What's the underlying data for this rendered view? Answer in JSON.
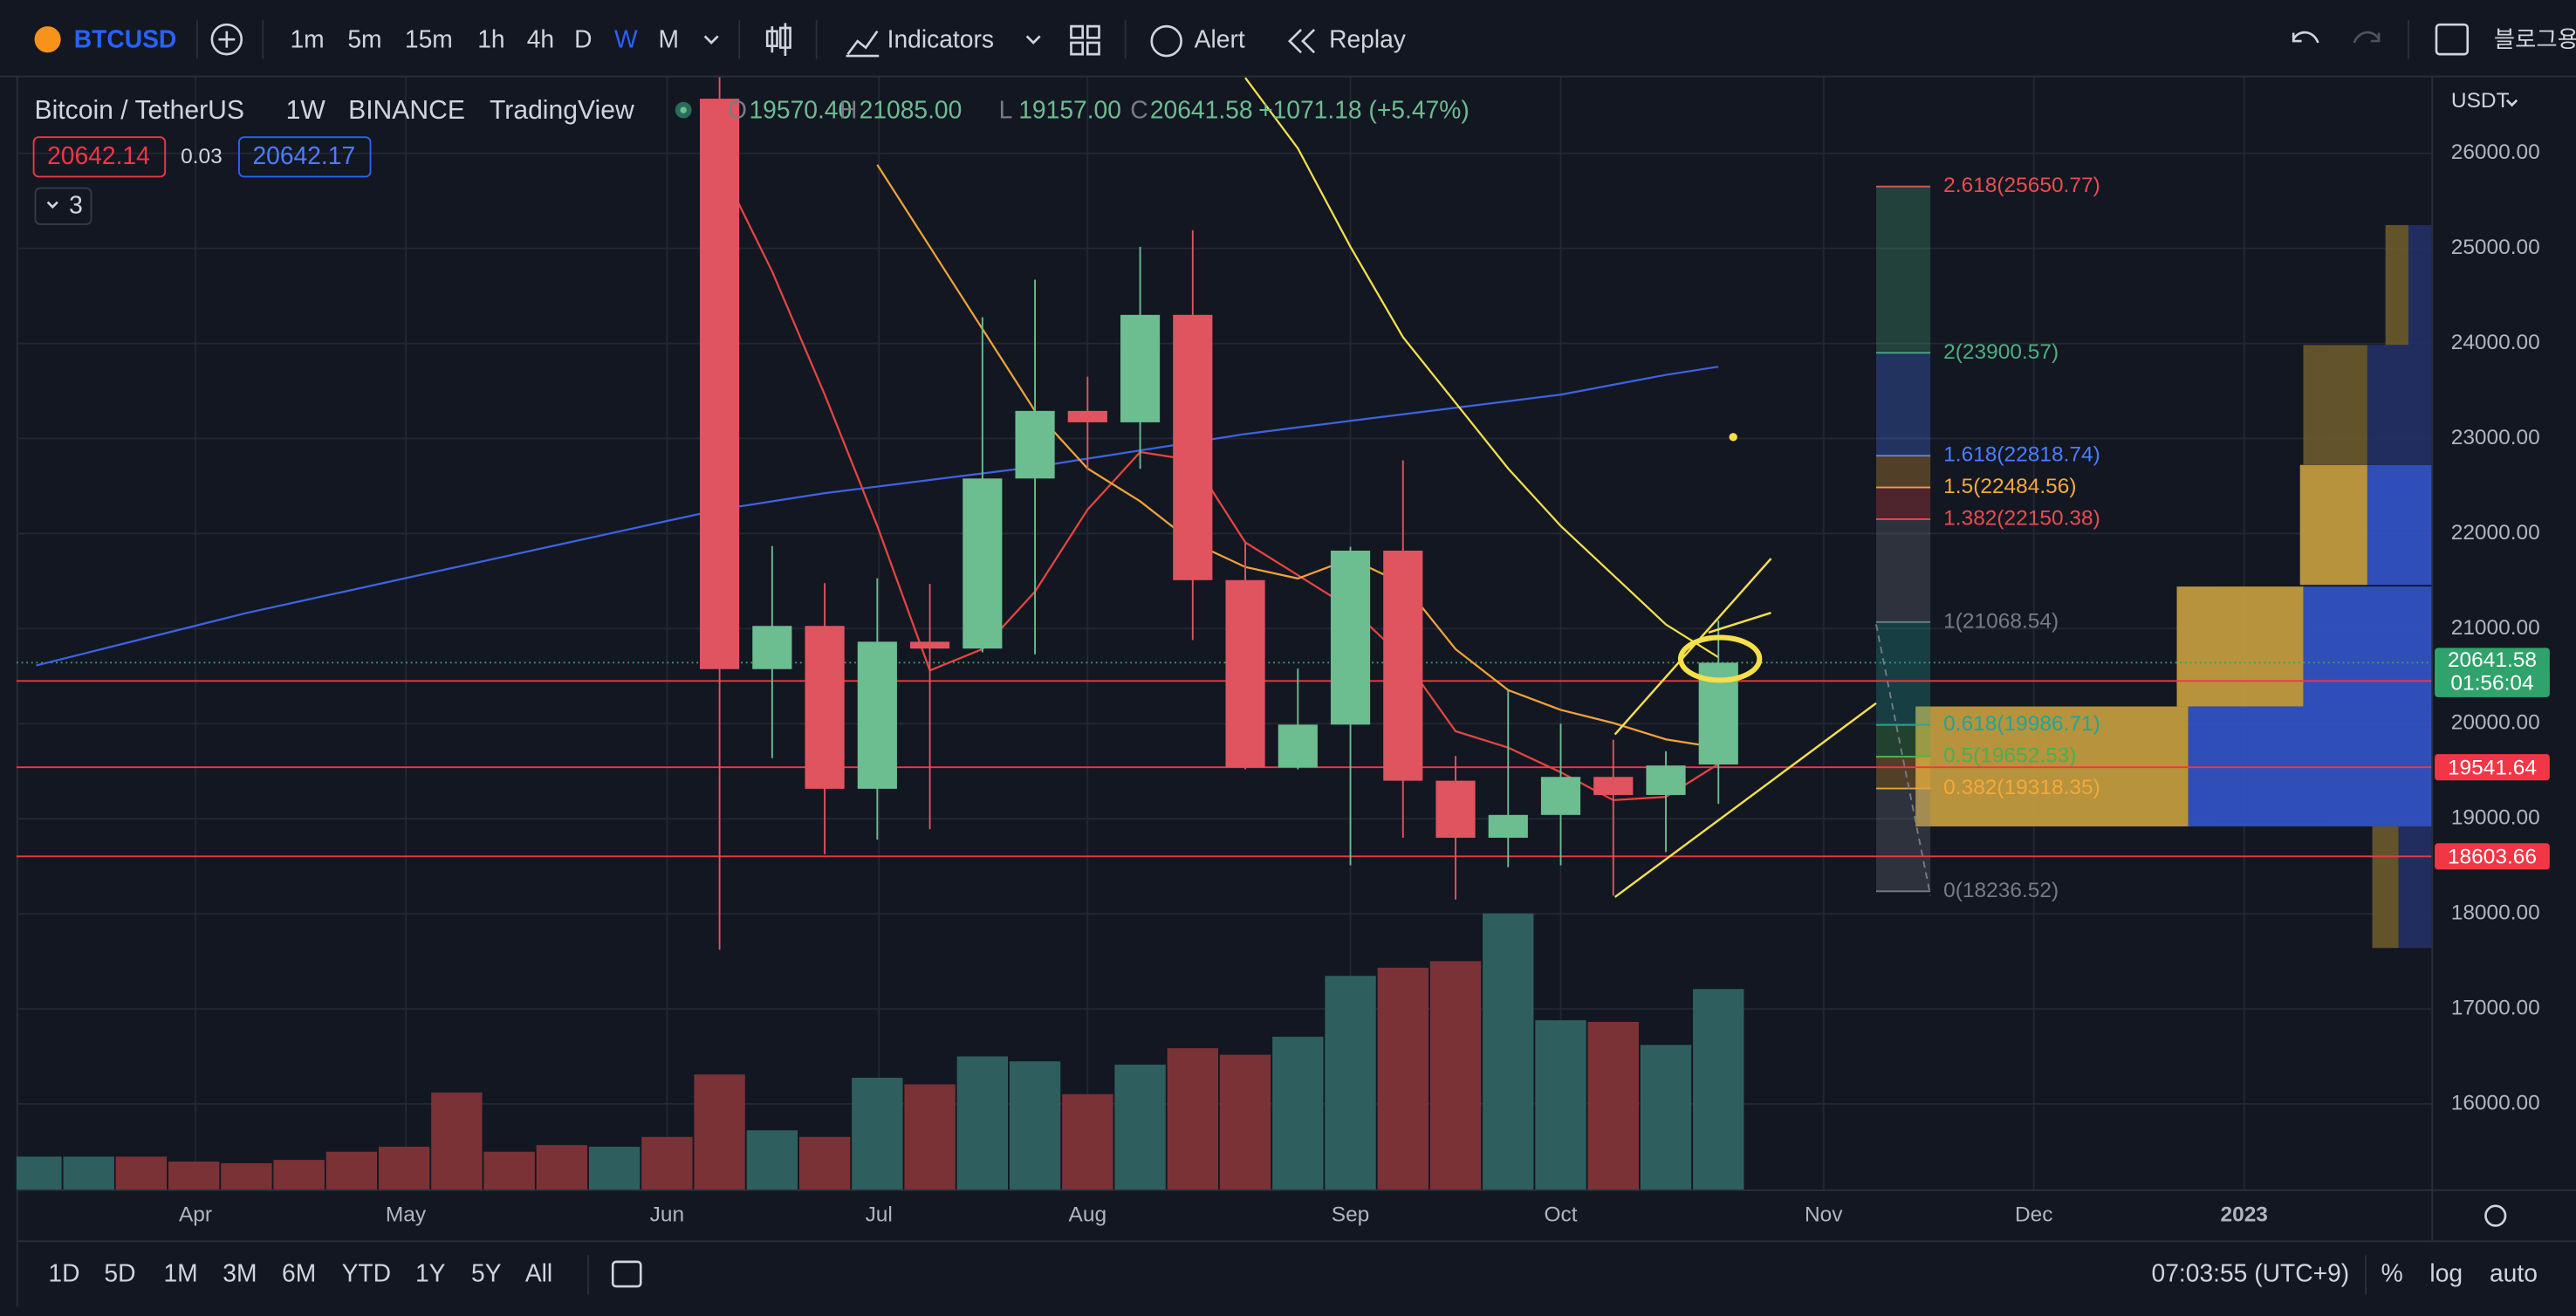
{
  "toolbar": {
    "symbol": "BTCUSD",
    "intervals": [
      "1m",
      "5m",
      "15m",
      "1h",
      "4h",
      "D",
      "W",
      "M"
    ],
    "active_interval": "W",
    "indicators": "Indicators",
    "alert": "Alert",
    "replay": "Replay",
    "layout_name": "블로그용"
  },
  "legend": {
    "name": "Bitcoin / TetherUS",
    "interval": "1W",
    "exchange": "BINANCE",
    "source": "TradingView",
    "o_label": "O",
    "open": "19570.40",
    "h_label": "H",
    "high": "21085.00",
    "l_label": "L",
    "low": "19157.00",
    "c_label": "C",
    "close": "20641.58",
    "change": "+1071.18 (+5.47%)",
    "bid": "20642.14",
    "spread": "0.03",
    "ask": "20642.17",
    "indicator_count": "3",
    "currency": "USDT"
  },
  "chart_data": {
    "type": "candlestick",
    "open": [
      null,
      null,
      null,
      null,
      null,
      null,
      null,
      null,
      null,
      null,
      null,
      null,
      null,
      26574,
      20574,
      21028,
      19315,
      20862,
      20790,
      22579,
      23290,
      23170,
      24300,
      21510,
      19540,
      19990,
      21820,
      19400,
      18800,
      19040,
      19440,
      19250,
      19570.4
    ],
    "high": [
      null,
      null,
      null,
      null,
      null,
      null,
      null,
      null,
      null,
      null,
      null,
      null,
      null,
      26880,
      21868,
      21478,
      21530,
      21470,
      24276,
      24670,
      23650,
      25015,
      25190,
      21900,
      20580,
      21860,
      22770,
      19660,
      20350,
      20000,
      19830,
      19710,
      21085
    ],
    "low": [
      null,
      null,
      null,
      null,
      null,
      null,
      null,
      null,
      null,
      null,
      null,
      null,
      null,
      17622,
      19637,
      18626,
      18780,
      18890,
      20750,
      20730,
      22670,
      22680,
      20880,
      19520,
      19520,
      18510,
      18800,
      18150,
      18490,
      18510,
      18190,
      18650,
      19157
    ],
    "close": [
      null,
      null,
      null,
      null,
      null,
      null,
      null,
      null,
      null,
      null,
      null,
      null,
      null,
      20574,
      21028,
      19315,
      20862,
      20790,
      22579,
      23290,
      23170,
      24300,
      21510,
      19540,
      19990,
      21820,
      19400,
      18800,
      19040,
      19440,
      19250,
      19560,
      20641.58
    ],
    "up_color": "#6cbd90",
    "down_color": "#e0545f",
    "volume": [
      20,
      20,
      20,
      17,
      16,
      18,
      23,
      26,
      59,
      23,
      27,
      26,
      32,
      70,
      36,
      32,
      68,
      64,
      81,
      78,
      58,
      76,
      86,
      82,
      93,
      130,
      135,
      139,
      168,
      103,
      102,
      88,
      122
    ],
    "volume_colors": [
      "#2e5f5e",
      "#2e5f5e",
      "#7a3236",
      "#7a3236",
      "#7a3236",
      "#7a3236",
      "#7a3236",
      "#7a3236",
      "#7a3236",
      "#7a3236",
      "#7a3236",
      "#2e5f5e",
      "#7a3236",
      "#7a3236",
      "#2e5f5e",
      "#7a3236",
      "#2e5f5e",
      "#7a3236",
      "#2e5f5e",
      "#2e5f5e",
      "#7a3236",
      "#2e5f5e",
      "#7a3236",
      "#7a3236",
      "#2e5f5e",
      "#2e5f5e",
      "#7a3236",
      "#7a3236",
      "#2e5f5e",
      "#2e5f5e",
      "#7a3236",
      "#2e5f5e",
      "#2e5f5e"
    ],
    "vlim": [
      0,
      170
    ],
    "lines": [
      {
        "color": "#3d63e0",
        "values": [
          20612,
          20750,
          20888,
          21026,
          21164,
          21285,
          21406,
          21527,
          21648,
          21769,
          21890,
          22011,
          22132,
          22252,
          22339,
          22425,
          22494,
          22563,
          22632,
          22701,
          22788,
          22874,
          22960,
          23047,
          23116,
          23185,
          23254,
          23323,
          23392,
          23461,
          23565,
          23669,
          23755
        ]
      },
      {
        "color": "#e5453f",
        "values": [
          null,
          null,
          null,
          null,
          null,
          null,
          null,
          null,
          null,
          null,
          null,
          null,
          null,
          25879,
          24757,
          23461,
          22080,
          20560,
          20784,
          21389,
          22252,
          22857,
          22771,
          21907,
          21562,
          21216,
          20698,
          19921,
          19748,
          19489,
          19196,
          19230,
          19576
        ]
      },
      {
        "color": "#f0a23a",
        "values": [
          null,
          null,
          null,
          null,
          null,
          null,
          null,
          null,
          null,
          null,
          null,
          null,
          null,
          null,
          null,
          null,
          25879,
          25016,
          24152,
          23289,
          22684,
          22339,
          21907,
          21648,
          21527,
          21734,
          21475,
          20784,
          20353,
          20145,
          20007,
          19835,
          19748
        ]
      },
      {
        "color": "#f5e04a",
        "values": [
          null,
          null,
          null,
          null,
          null,
          null,
          null,
          null,
          null,
          null,
          null,
          null,
          null,
          null,
          null,
          null,
          null,
          null,
          null,
          null,
          null,
          null,
          null,
          26794,
          26052,
          25016,
          24066,
          23375,
          22684,
          22080,
          21562,
          21044,
          20698
        ]
      }
    ],
    "ylim": [
      15100,
      26800
    ],
    "yticks": [
      {
        "value": 16000,
        "label": "16000.00"
      },
      {
        "value": 17000,
        "label": "17000.00"
      },
      {
        "value": 18000,
        "label": "18000.00"
      },
      {
        "value": 19000,
        "label": "19000.00"
      },
      {
        "value": 20000,
        "label": "20000.00"
      },
      {
        "value": 21000,
        "label": "21000.00"
      },
      {
        "value": 22000,
        "label": "22000.00"
      },
      {
        "value": 23000,
        "label": "23000.00"
      },
      {
        "value": 24000,
        "label": "24000.00"
      },
      {
        "value": 25000,
        "label": "25000.00"
      },
      {
        "value": 26000,
        "label": "26000.00"
      }
    ],
    "xtick_labels": [
      "Apr",
      "May",
      "Jun",
      "Jul",
      "Aug",
      "Sep",
      "Oct",
      "Nov",
      "Dec",
      "2023"
    ],
    "grid": true,
    "last_price": 20641.58,
    "countdown": "01:56:04",
    "last_price_color": "#2fa36b",
    "price_lines": [
      20449.44,
      19541.64,
      18603.66
    ],
    "price_line_color": "#f23645",
    "fib_levels": [
      {
        "value": 25650.77,
        "label": "2.618(25650.77)",
        "color": "#e84d4d"
      },
      {
        "value": 23900.57,
        "label": "2(23900.57)",
        "color": "#4caf7d"
      },
      {
        "value": 22818.74,
        "label": "1.618(22818.74)",
        "color": "#4a7dff"
      },
      {
        "value": 22484.56,
        "label": "1.5(22484.56)",
        "color": "#f4a93b"
      },
      {
        "value": 22150.38,
        "label": "1.382(22150.38)",
        "color": "#e84d4d"
      },
      {
        "value": 21068.54,
        "label": "1(21068.54)",
        "color": "#787b86"
      },
      {
        "value": 19986.71,
        "label": "0.618(19986.71)",
        "color": "#22a59a"
      },
      {
        "value": 19652.53,
        "label": "0.5(19652.53)",
        "color": "#4caf50"
      },
      {
        "value": 19318.35,
        "label": "0.382(19318.35)",
        "color": "#f4a93b"
      },
      {
        "value": 18236.52,
        "label": "0(18236.52)",
        "color": "#787b86"
      }
    ]
  },
  "bottom_bar": {
    "ranges": [
      "1D",
      "5D",
      "1M",
      "3M",
      "6M",
      "YTD",
      "1Y",
      "5Y",
      "All"
    ],
    "clock": "07:03:55 (UTC+9)",
    "percent": "%",
    "log": "log",
    "auto": "auto"
  }
}
